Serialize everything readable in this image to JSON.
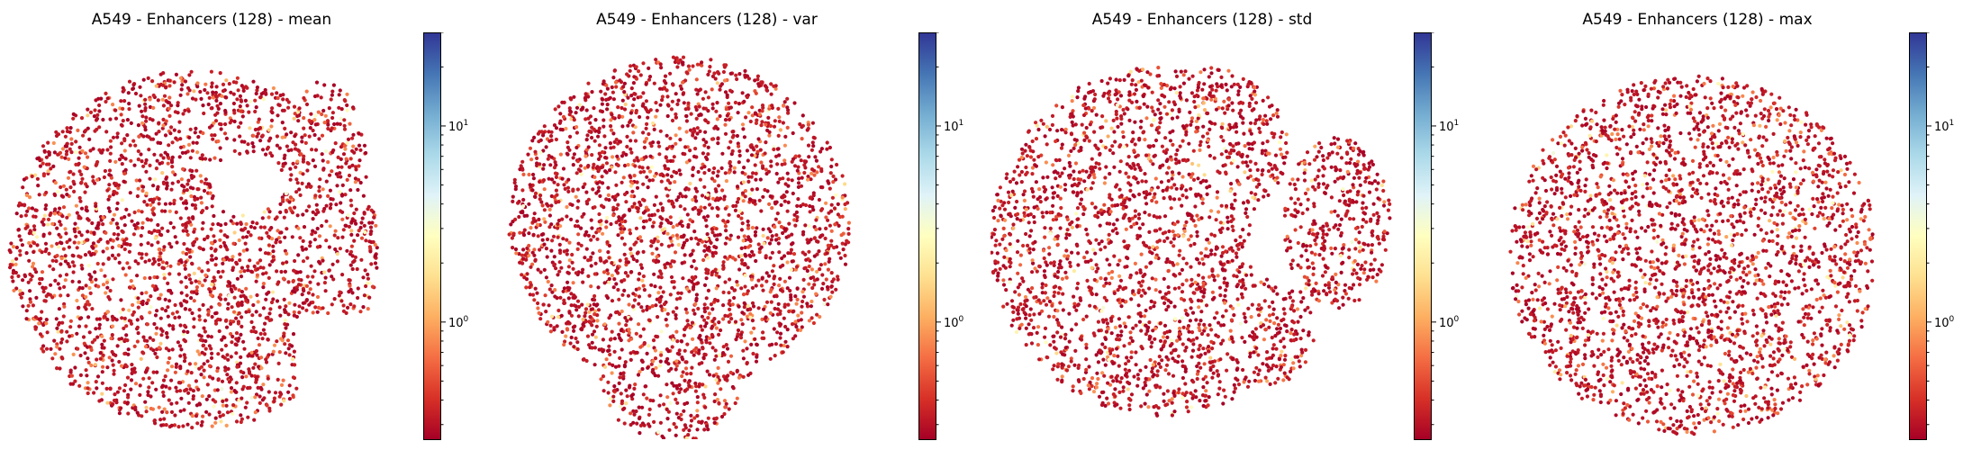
{
  "panels": [
    {
      "title": "A549 - Enhancers (128) - mean",
      "seed": 11,
      "shape": "mean"
    },
    {
      "title": "A549 - Enhancers (128) - var",
      "seed": 23,
      "shape": "var"
    },
    {
      "title": "A549 - Enhancers (128) - std",
      "seed": 37,
      "shape": "std"
    },
    {
      "title": "A549 - Enhancers (128) - max",
      "seed": 53,
      "shape": "max"
    }
  ],
  "colorbar": {
    "scale": "log",
    "range": [
      0.25,
      30
    ],
    "ticks": [
      {
        "value": 1,
        "base": "10",
        "exp": "0"
      },
      {
        "value": 10,
        "base": "10",
        "exp": "1"
      }
    ],
    "colormap": [
      "#a50026",
      "#d73027",
      "#f46d43",
      "#fdae61",
      "#fee090",
      "#ffffbf",
      "#e0f3f8",
      "#abd9e9",
      "#74add1",
      "#4575b4",
      "#313695"
    ]
  },
  "chart_data": [
    {
      "type": "scatter",
      "title": "A549 - Enhancers (128) - mean",
      "color_scale": "log",
      "color_range": [
        0.25,
        30
      ],
      "colormap": "RdYlBu",
      "axes_visible": false
    },
    {
      "type": "scatter",
      "title": "A549 - Enhancers (128) - var",
      "color_scale": "log",
      "color_range": [
        0.25,
        30
      ],
      "colormap": "RdYlBu",
      "axes_visible": false
    },
    {
      "type": "scatter",
      "title": "A549 - Enhancers (128) - std",
      "color_scale": "log",
      "color_range": [
        0.25,
        30
      ],
      "colormap": "RdYlBu",
      "axes_visible": false
    },
    {
      "type": "scatter",
      "title": "A549 - Enhancers (128) - max",
      "color_scale": "log",
      "color_range": [
        0.25,
        30
      ],
      "colormap": "RdYlBu",
      "axes_visible": false
    }
  ]
}
